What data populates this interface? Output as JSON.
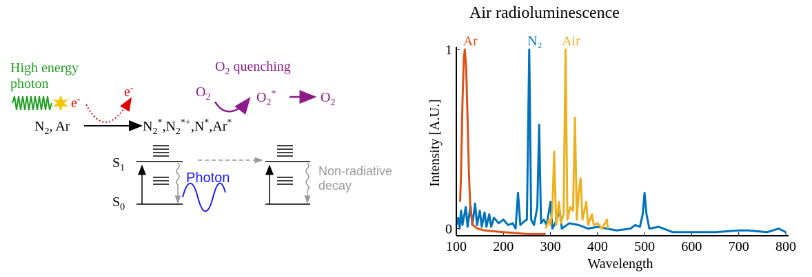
{
  "diagram": {
    "high_energy_photon": [
      "High energy",
      "photon"
    ],
    "electron_1": [
      "e",
      "-"
    ],
    "electron_2": [
      "e",
      "-"
    ],
    "reactants": [
      "N",
      "2",
      ", Ar"
    ],
    "products": [
      "N",
      "2",
      "*",
      ",N",
      "2",
      "*+",
      ",N",
      "*",
      ",Ar",
      "*"
    ],
    "quenching": [
      "O",
      "2",
      " quenching"
    ],
    "o2_left": [
      "O",
      "2"
    ],
    "o2_excited": [
      "O",
      "2",
      "*"
    ],
    "o2_right": [
      "O",
      "2"
    ],
    "s1": [
      "S",
      "1"
    ],
    "s0": [
      "S",
      "0"
    ],
    "photon": "Photon",
    "non_radiative": [
      "Non-radiative",
      "decay"
    ]
  },
  "chart_data": {
    "type": "line",
    "title": "Air radioluminescence",
    "x_label": "Wavelength",
    "y_label": "Intensity [A.U.]",
    "xlim": [
      100,
      800
    ],
    "xticks": [
      100,
      200,
      300,
      400,
      500,
      600,
      700,
      800
    ],
    "ylim": [
      -0.04,
      1
    ],
    "yticks": [
      0,
      1
    ],
    "series": [
      {
        "name": "N₂",
        "color": "#0072bd",
        "x": [
          100,
          104,
          107,
          110,
          113,
          120,
          124,
          130,
          134,
          140,
          144,
          150,
          154,
          160,
          164,
          170,
          174,
          180,
          190,
          200,
          210,
          220,
          226,
          231,
          236,
          244,
          250,
          255,
          259,
          265,
          272,
          276,
          280,
          286,
          292,
          300,
          304,
          310,
          320,
          324,
          340,
          360,
          380,
          400,
          420,
          440,
          470,
          480,
          490,
          496,
          500,
          504,
          510,
          530,
          560,
          600,
          650,
          700,
          720,
          760,
          785,
          800
        ],
        "values": [
          0.02,
          0.06,
          0.0,
          0.1,
          0.02,
          0.12,
          0.01,
          0.13,
          0.02,
          0.14,
          0.02,
          0.1,
          0.01,
          0.09,
          0.01,
          0.08,
          0.01,
          0.06,
          0.03,
          0.05,
          0.02,
          0.03,
          0.0,
          0.2,
          0.02,
          0.04,
          0.05,
          1.0,
          0.05,
          0.02,
          0.12,
          0.58,
          0.03,
          0.05,
          0.02,
          0.15,
          0.0,
          0.03,
          0.1,
          0.0,
          0.03,
          0.02,
          0.0,
          0.01,
          0.0,
          -0.01,
          0.0,
          0.02,
          0.01,
          0.08,
          0.2,
          0.08,
          0.0,
          0.01,
          -0.02,
          -0.02,
          -0.02,
          -0.01,
          -0.01,
          -0.02,
          0.0,
          -0.02
        ]
      },
      {
        "name": "Air",
        "color": "#edb120",
        "x": [
          290,
          297,
          300,
          304,
          308,
          312,
          318,
          322,
          328,
          332,
          336,
          342,
          348,
          352,
          356,
          360,
          364,
          368,
          376,
          380,
          388,
          392,
          400,
          410,
          420,
          422
        ],
        "values": [
          0,
          0.05,
          0.02,
          0.1,
          0.43,
          0.02,
          0.15,
          0.03,
          0.08,
          1.0,
          0.05,
          0.12,
          0.1,
          0.62,
          0.05,
          0.2,
          0.28,
          0.05,
          0.15,
          0.02,
          0.08,
          0.02,
          0.03,
          0.0,
          0.05,
          0
        ]
      },
      {
        "name": "Ar",
        "color": "#d95319",
        "x": [
          108,
          110,
          113,
          116,
          118,
          121,
          124,
          127,
          130,
          135,
          145,
          160,
          200,
          250,
          290
        ],
        "values": [
          0.15,
          0.3,
          0.7,
          0.95,
          1.0,
          0.9,
          0.6,
          0.3,
          0.1,
          0.02,
          0,
          -0.01,
          -0.02,
          -0.03,
          -0.03
        ]
      }
    ]
  }
}
